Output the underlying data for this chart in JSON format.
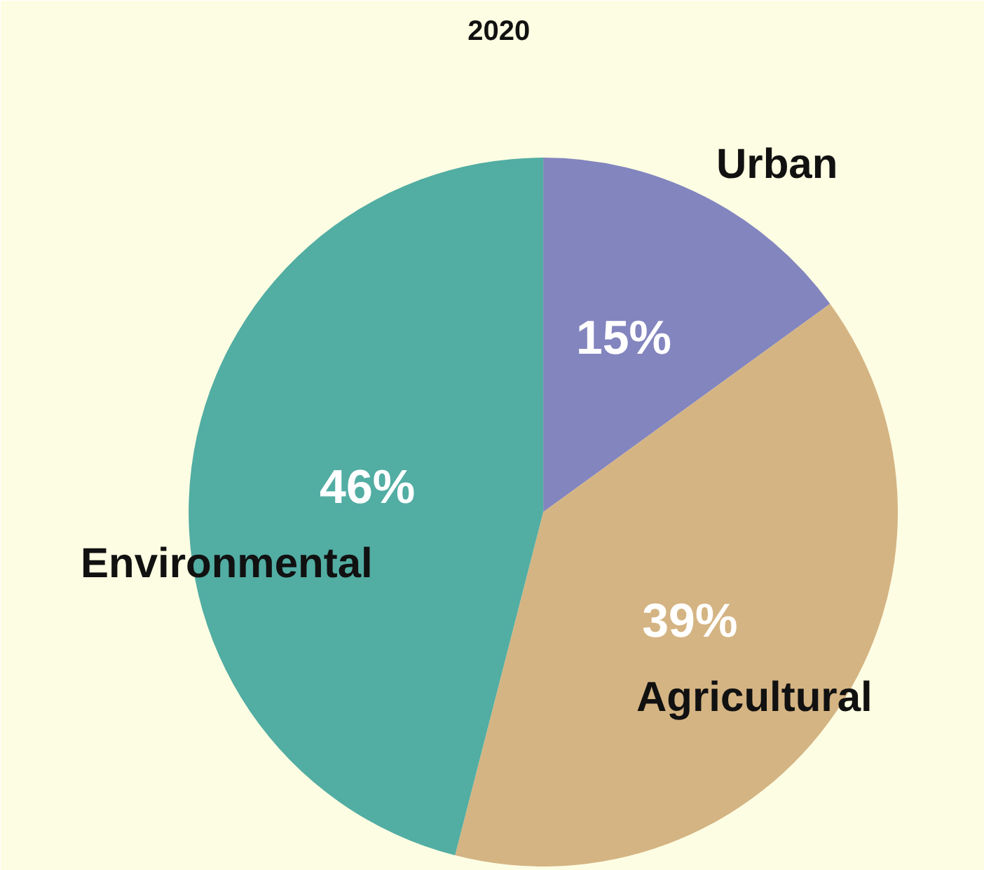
{
  "chart_data": {
    "type": "pie",
    "title": "2020",
    "categories": [
      "Urban",
      "Agricultural",
      "Environmental"
    ],
    "values": [
      15,
      39,
      46
    ],
    "colors": [
      "#8385bf",
      "#d4b483",
      "#52ada3"
    ],
    "value_labels": [
      "15%",
      "39%",
      "46%"
    ]
  }
}
